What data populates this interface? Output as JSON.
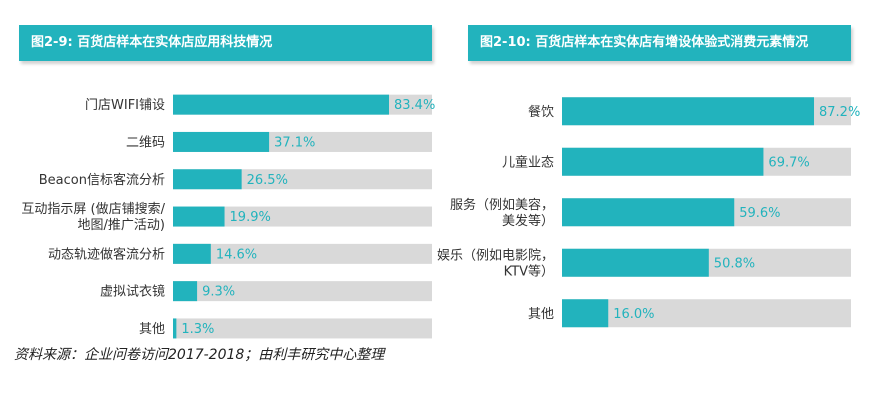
{
  "colors": {
    "bar": "#22b3bd",
    "track": "#d9d9d9",
    "value_text": "#22b3bd",
    "header_bg": "#22b3bd"
  },
  "chart_data": [
    {
      "type": "bar",
      "orientation": "horizontal",
      "title": "图2-9: 百货店样本在实体店应用科技情况",
      "categories": [
        [
          "门店WIFI铺设"
        ],
        [
          "二维码"
        ],
        [
          "Beacon信标客流分析"
        ],
        [
          "互动指示屏 (做店铺搜索/",
          "地图/推广活动)"
        ],
        [
          "动态轨迹做客流分析"
        ],
        [
          "虚拟试衣镜"
        ],
        [
          "其他"
        ]
      ],
      "values": [
        83.4,
        37.1,
        26.5,
        19.9,
        14.6,
        9.3,
        1.3
      ],
      "value_labels": [
        "83.4%",
        "37.1%",
        "26.5%",
        "19.9%",
        "14.6%",
        "9.3%",
        "1.3%"
      ],
      "xlim": [
        0,
        100
      ]
    },
    {
      "type": "bar",
      "orientation": "horizontal",
      "title": "图2-10: 百货店样本在实体店有增设体验式消费元素情况",
      "categories": [
        [
          "餐饮"
        ],
        [
          "儿童业态"
        ],
        [
          "服务（例如美容，",
          "美发等）"
        ],
        [
          "娱乐（例如电影院，",
          "KTV等）"
        ],
        [
          "其他"
        ]
      ],
      "values": [
        87.2,
        69.7,
        59.6,
        50.8,
        16.0
      ],
      "value_labels": [
        "87.2%",
        "69.7%",
        "59.6%",
        "50.8%",
        "16.0%"
      ],
      "xlim": [
        0,
        100
      ]
    }
  ],
  "footer": {
    "source": "资料来源：企业问卷访问2017-2018；由利丰研究中心整理"
  }
}
